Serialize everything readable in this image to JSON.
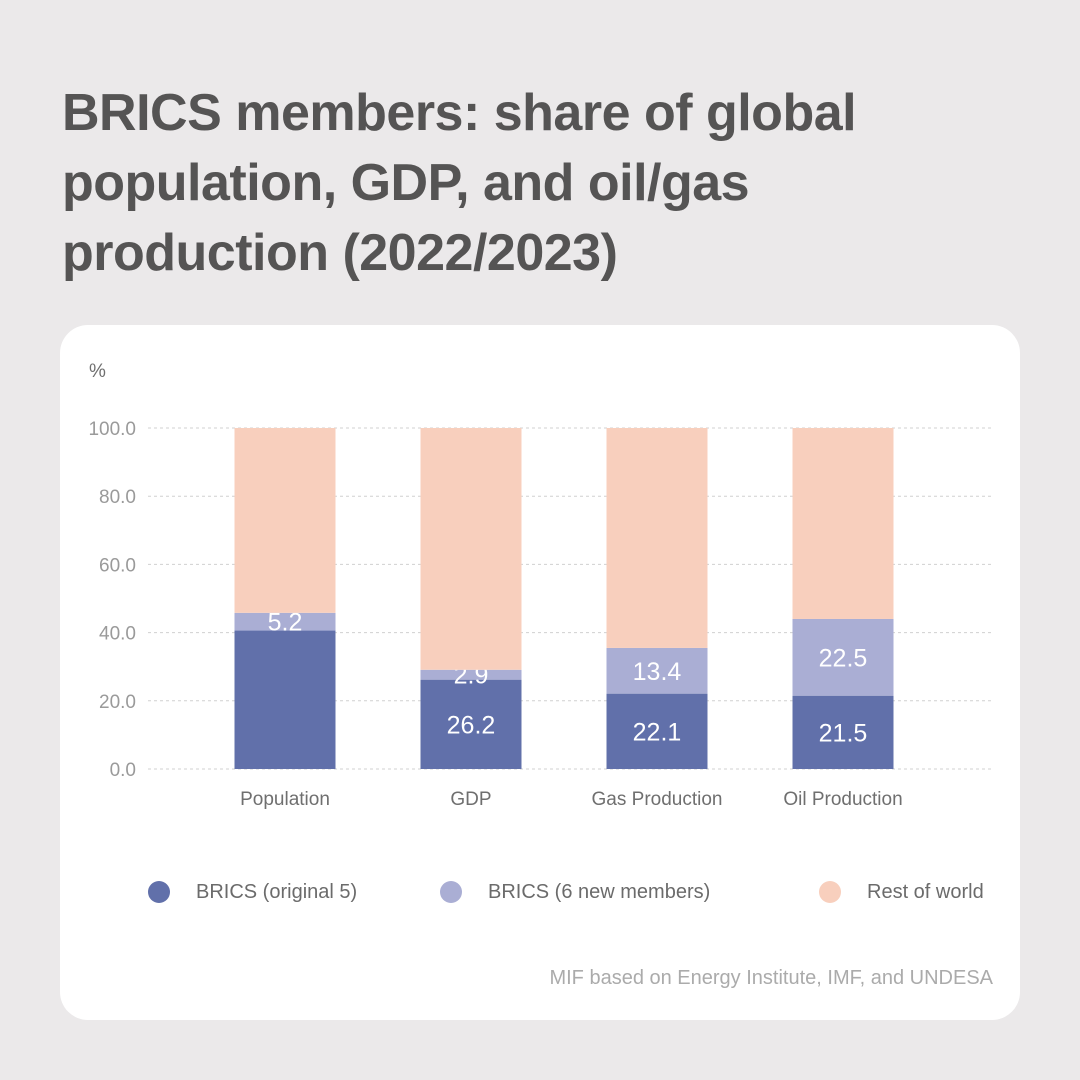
{
  "title": "BRICS members: share of global population, GDP, and oil/gas production (2022/2023)",
  "source": "MIF based on Energy Institute, IMF, and UNDESA",
  "colors": {
    "original": "#6170aa",
    "new": "#aaaed4",
    "rest": "#f8cfbd",
    "grid": "#d0d0d0",
    "tick": "#9a9a9a",
    "category": "#6f6f6f",
    "datalabel": "#ffffff"
  },
  "chart_data": {
    "type": "bar",
    "stacked": true,
    "title": "BRICS members: share of global population, GDP, and oil/gas production (2022/2023)",
    "ylabel": "%",
    "xlabel": "",
    "ylim": [
      0,
      100
    ],
    "yticks": [
      "0.0",
      "20.0",
      "40.0",
      "60.0",
      "80.0",
      "100.0"
    ],
    "yticks_values": [
      0,
      20,
      40,
      60,
      80,
      100
    ],
    "grid": true,
    "legend_position": "bottom",
    "categories": [
      "Population",
      "GDP",
      "Gas Production",
      "Oil Production"
    ],
    "series": [
      {
        "name": "BRICS (original 5)",
        "values": [
          40.6,
          26.2,
          22.1,
          21.5
        ],
        "labels": [
          "",
          "26.2",
          "22.1",
          "21.5"
        ]
      },
      {
        "name": "BRICS (6 new members)",
        "values": [
          5.2,
          2.9,
          13.4,
          22.5
        ],
        "labels": [
          "5.2",
          "2.9",
          "13.4",
          "22.5"
        ]
      },
      {
        "name": "Rest of world",
        "values": [
          54.2,
          70.9,
          64.5,
          56.0
        ],
        "labels": [
          "",
          "",
          "",
          ""
        ]
      }
    ]
  }
}
